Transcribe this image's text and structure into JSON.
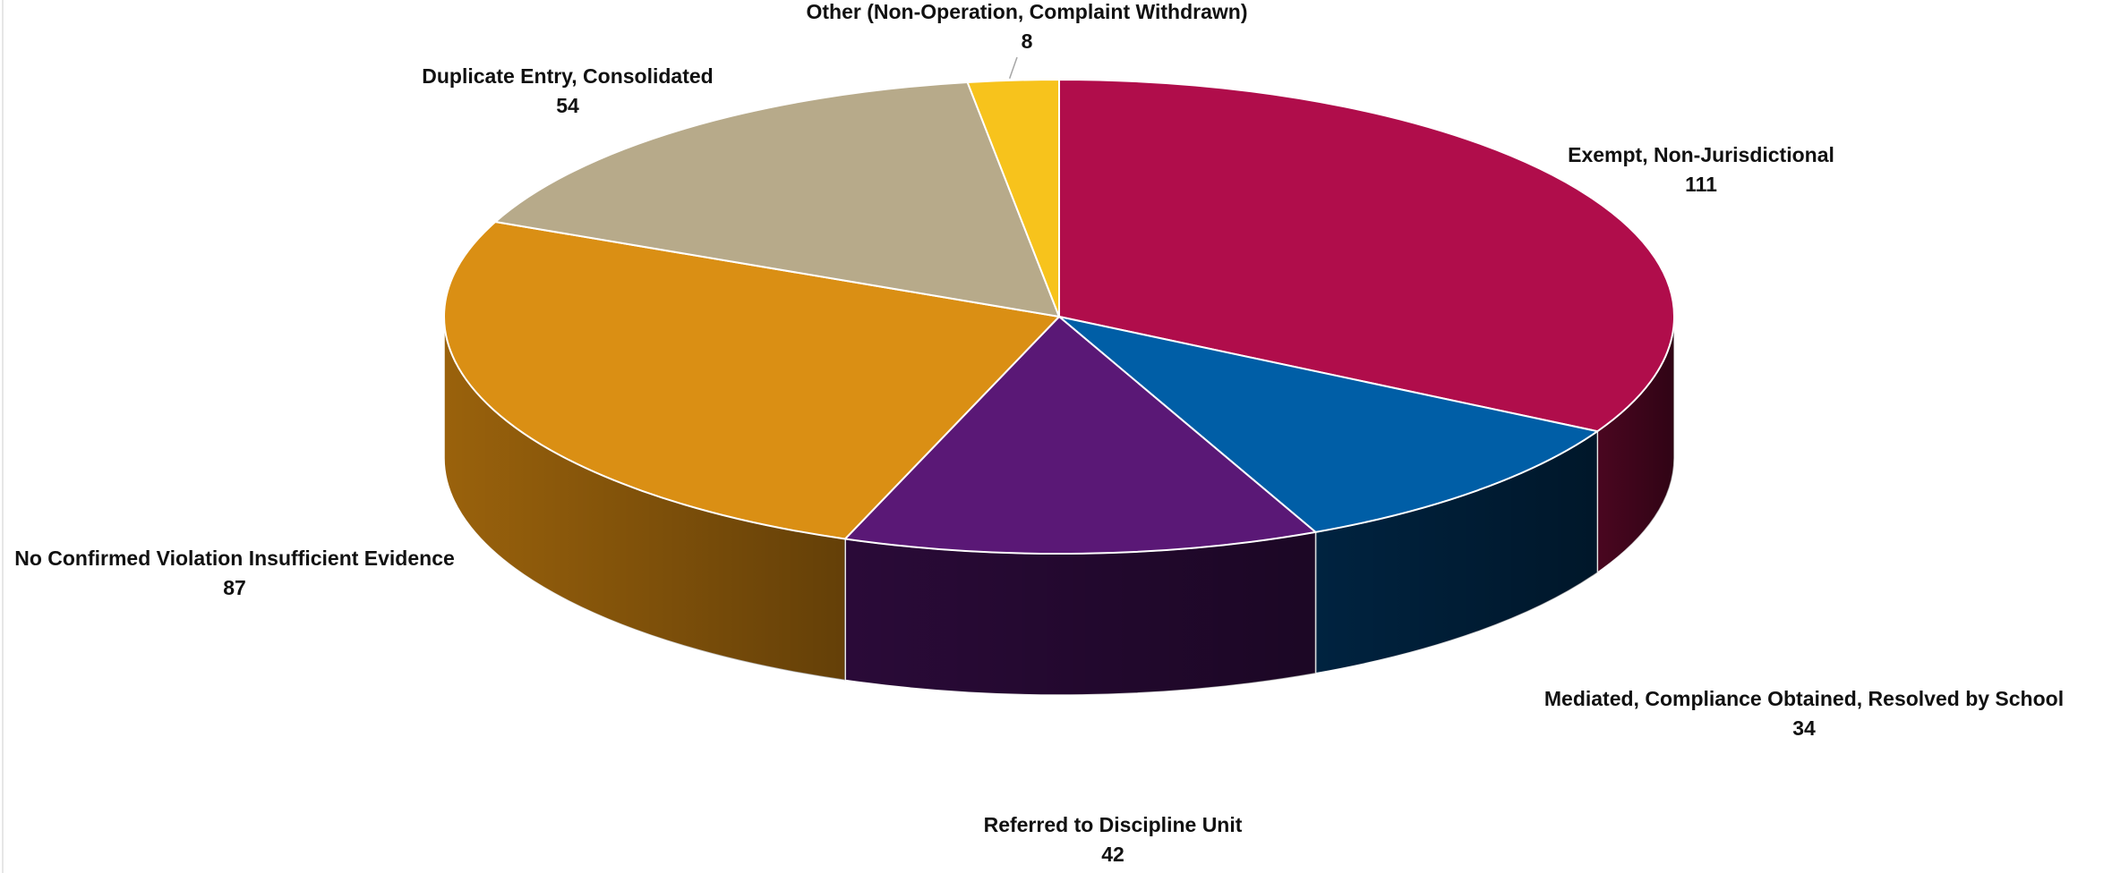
{
  "chart_data": {
    "type": "pie",
    "title": "",
    "style": "3d",
    "slices": [
      {
        "label": "Exempt, Non-Jurisdictional",
        "value": 111,
        "color": "#b00d4b",
        "side_color": "#4a0620"
      },
      {
        "label": "Mediated, Compliance Obtained, Resolved by School",
        "value": 34,
        "color": "#005ea6",
        "side_color": "#002340"
      },
      {
        "label": "Referred to Discipline Unit",
        "value": 42,
        "color": "#5a1876",
        "side_color": "#2a0a38"
      },
      {
        "label": "No Confirmed Violation Insufficient Evidence",
        "value": 87,
        "color": "#da8f14",
        "side_color": "#9a620c"
      },
      {
        "label": "Duplicate Entry, Consolidated",
        "value": 54,
        "color": "#b7aa8a",
        "side_color": "#7d735c"
      },
      {
        "label": "Other (Non-Operation, Complaint Withdrawn)",
        "value": 8,
        "color": "#f7c31c",
        "side_color": "#b08a10"
      }
    ]
  }
}
